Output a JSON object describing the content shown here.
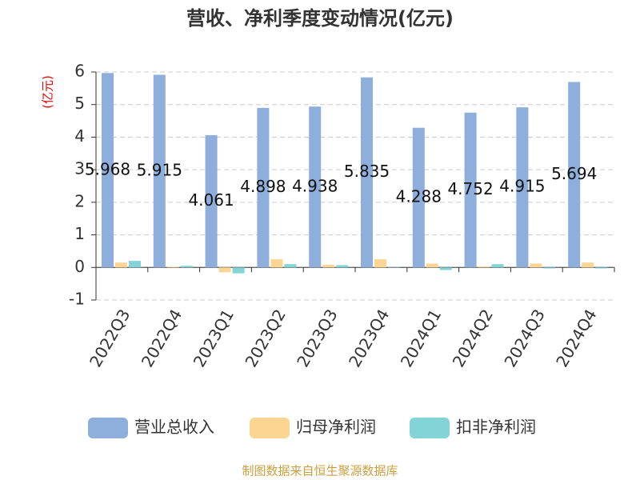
{
  "chart_data": {
    "type": "bar",
    "title": "营收、净利季度变动情况(亿元)",
    "y_label": "(亿元)",
    "categories": [
      "2022Q3",
      "2022Q4",
      "2023Q1",
      "2023Q2",
      "2023Q3",
      "2023Q4",
      "2024Q1",
      "2024Q2",
      "2024Q3",
      "2024Q4"
    ],
    "series": [
      {
        "name": "营业总收入",
        "color": "#8eaedb",
        "values": [
          5.968,
          5.915,
          4.061,
          4.898,
          4.938,
          5.835,
          4.288,
          4.752,
          4.915,
          5.694
        ],
        "labels": true
      },
      {
        "name": "归母净利润",
        "color": "#fcd593",
        "values": [
          0.15,
          0.02,
          -0.15,
          0.25,
          0.08,
          0.25,
          0.12,
          0.03,
          0.12,
          0.15
        ]
      },
      {
        "name": "扣非净利润",
        "color": "#83d4d6",
        "values": [
          0.2,
          0.05,
          -0.18,
          0.1,
          0.07,
          0.01,
          -0.08,
          0.1,
          -0.03,
          -0.03
        ]
      }
    ],
    "ylim": [
      -1,
      6
    ],
    "yticks": [
      -1,
      0,
      1,
      2,
      3,
      4,
      5,
      6
    ],
    "grid": true,
    "source": "制图数据来自恒生聚源数据库"
  }
}
